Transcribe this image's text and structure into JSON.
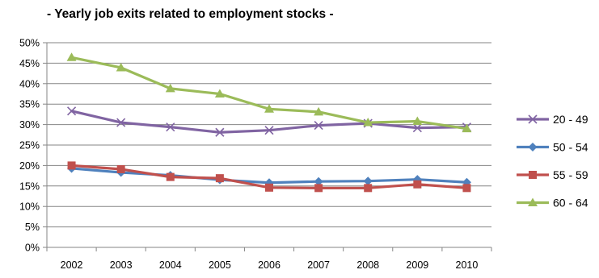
{
  "chart_data": {
    "type": "line",
    "title": "- Yearly job exits related to employment stocks -",
    "xlabel": "",
    "ylabel": "",
    "ylim": [
      0,
      50
    ],
    "y_ticks": [
      "0%",
      "5%",
      "10%",
      "15%",
      "20%",
      "25%",
      "30%",
      "35%",
      "40%",
      "45%",
      "50%"
    ],
    "y_tick_values": [
      0,
      5,
      10,
      15,
      20,
      25,
      30,
      35,
      40,
      45,
      50
    ],
    "categories": [
      "2002",
      "2003",
      "2004",
      "2005",
      "2006",
      "2007",
      "2008",
      "2009",
      "2010"
    ],
    "grid": "horizontal",
    "legend_position": "right",
    "series": [
      {
        "name": "20 - 49",
        "color": "#8064A2",
        "marker": "x",
        "values": [
          33.3,
          30.5,
          29.4,
          28.1,
          28.6,
          29.8,
          30.3,
          29.2,
          29.4
        ]
      },
      {
        "name": "50 - 54",
        "color": "#4F81BD",
        "marker": "diamond",
        "values": [
          19.3,
          18.3,
          17.6,
          16.5,
          15.8,
          16.1,
          16.2,
          16.6,
          15.9
        ]
      },
      {
        "name": "55 - 59",
        "color": "#C0504D",
        "marker": "square",
        "values": [
          20.0,
          19.1,
          17.2,
          16.9,
          14.6,
          14.5,
          14.5,
          15.4,
          14.5
        ]
      },
      {
        "name": "60 - 64",
        "color": "#9BBB59",
        "marker": "triangle",
        "values": [
          46.4,
          43.9,
          38.8,
          37.5,
          33.8,
          33.1,
          30.5,
          30.8,
          29.0
        ]
      }
    ]
  }
}
